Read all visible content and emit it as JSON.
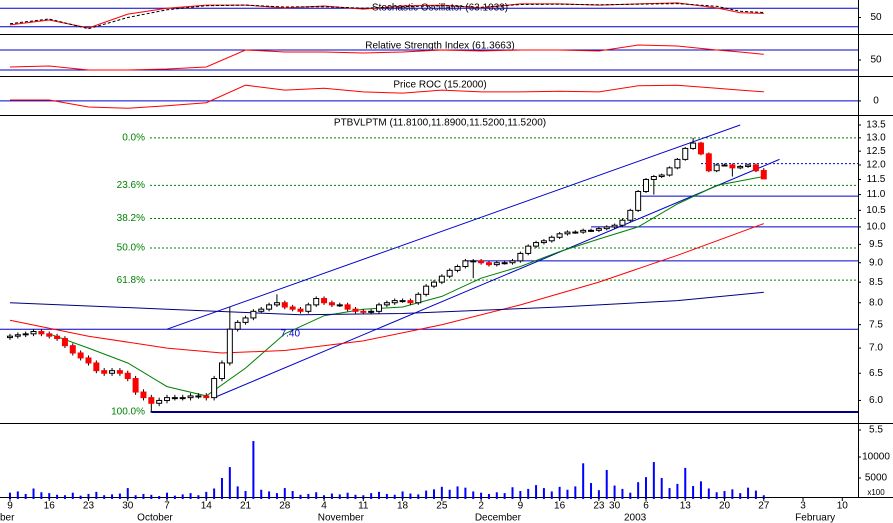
{
  "chart_data": [
    {
      "type": "line",
      "title": "Stochastic Oscillator (63.1033)",
      "xlim": [
        -1.27,
        108
      ],
      "ylim": [
        0,
        100
      ],
      "yticks": [
        50
      ],
      "levels": [
        80,
        20
      ],
      "level_color": "#0000cc",
      "series": [
        {
          "color": "#ff0000",
          "x": [
            0,
            5,
            10,
            15,
            20,
            25,
            30,
            35,
            40,
            45,
            50,
            55,
            60,
            65,
            70,
            75,
            80,
            85,
            90,
            93,
            96
          ],
          "values": [
            26,
            42,
            16,
            61,
            80,
            90,
            90,
            81,
            87,
            77,
            87,
            90,
            81,
            94,
            94,
            90,
            94,
            97,
            81,
            65,
            63.1
          ]
        },
        {
          "color": "#000000",
          "dash": true,
          "x": [
            0,
            5,
            10,
            15,
            20,
            25,
            30,
            35,
            40,
            45,
            50,
            55,
            60,
            65,
            70,
            75,
            80,
            85,
            90,
            93,
            96
          ],
          "values": [
            30,
            45,
            14,
            50,
            75,
            88,
            90,
            84,
            85,
            80,
            85,
            88,
            83,
            92,
            93,
            91,
            93,
            95,
            86,
            70,
            66
          ]
        }
      ]
    },
    {
      "type": "line",
      "title": "Relative Strength Index (61.3663)",
      "xlim": [
        -1.27,
        108
      ],
      "ylim": [
        18,
        98
      ],
      "yticks": [
        50
      ],
      "levels": [
        70,
        30
      ],
      "level_color": "#0000cc",
      "series": [
        {
          "color": "#ff0000",
          "x": [
            0,
            5,
            10,
            15,
            20,
            25,
            30,
            35,
            40,
            45,
            50,
            55,
            60,
            65,
            70,
            75,
            80,
            85,
            90,
            93,
            96
          ],
          "values": [
            36,
            38,
            30,
            30,
            32,
            36,
            70,
            66,
            66,
            64,
            66,
            70,
            68,
            70,
            70,
            68,
            80,
            78,
            70,
            66,
            61.3663
          ]
        }
      ]
    },
    {
      "type": "line",
      "title": "Price ROC (15.2000)",
      "xlim": [
        -1.27,
        108
      ],
      "ylim": [
        -20,
        38
      ],
      "yticks": [
        0
      ],
      "levels": [
        0
      ],
      "level_color": "#0000cc",
      "series": [
        {
          "color": "#ff0000",
          "x": [
            0,
            5,
            10,
            15,
            20,
            25,
            30,
            35,
            40,
            45,
            50,
            55,
            60,
            65,
            70,
            75,
            80,
            85,
            90,
            93,
            96
          ],
          "values": [
            1.5,
            1.5,
            -10,
            -12,
            -8,
            -3,
            26,
            18,
            21,
            15,
            13,
            18,
            15,
            15,
            16,
            15,
            25,
            26,
            21,
            18,
            15.2
          ]
        }
      ]
    },
    {
      "type": "candlestick",
      "title": "PTBVLPTM (11.8100,11.8900,11.5200,11.5200)",
      "log_scale": true,
      "xlim": [
        -1.27,
        108
      ],
      "ylim": [
        5.5,
        13.5
      ],
      "yticks": [
        13.5,
        {
          "value": 13,
          "label": "13.0"
        },
        12.5,
        {
          "value": 12,
          "label": "12.0"
        },
        11.5,
        {
          "value": 11,
          "label": "11.0"
        },
        10.5,
        {
          "value": 10,
          "label": "10.0"
        },
        9.5,
        {
          "value": 9,
          "label": "9.0"
        },
        8.5,
        {
          "value": 8,
          "label": "8.0"
        },
        7.5,
        {
          "value": 7,
          "label": "7.0"
        },
        6.5,
        {
          "value": 6,
          "label": "6.0"
        },
        5.5
      ],
      "up_color": "#ffffff",
      "down_color": "#ff0000",
      "candles": {
        "open": [
          7.22,
          7.25,
          7.28,
          7.3,
          7.35,
          7.3,
          7.25,
          7.2,
          7.05,
          6.9,
          6.8,
          6.7,
          6.55,
          6.5,
          6.55,
          6.5,
          6.4,
          6.15,
          6.05,
          5.95,
          6.0,
          6.05,
          6.05,
          6.05,
          6.08,
          6.08,
          6.05,
          6.4,
          6.7,
          7.4,
          7.55,
          7.65,
          7.8,
          7.85,
          7.95,
          8.0,
          7.9,
          7.85,
          7.8,
          7.95,
          8.1,
          8.0,
          7.95,
          7.95,
          7.85,
          7.8,
          7.78,
          7.8,
          7.95,
          8.0,
          8.05,
          8.05,
          8.0,
          8.2,
          8.4,
          8.5,
          8.65,
          8.8,
          8.9,
          9.05,
          9.05,
          9.0,
          8.95,
          9.0,
          9.0,
          9.05,
          9.25,
          9.45,
          9.55,
          9.6,
          9.7,
          9.8,
          9.85,
          9.85,
          9.9,
          9.9,
          9.95,
          10.0,
          10.05,
          10.2,
          10.5,
          11.1,
          11.5,
          11.6,
          11.65,
          11.9,
          12.2,
          12.6,
          12.8,
          12.4,
          11.8,
          12.0,
          12.0,
          11.9,
          11.95,
          12.0,
          11.81
        ],
        "high": [
          7.3,
          7.33,
          7.35,
          7.4,
          7.4,
          7.35,
          7.3,
          7.25,
          7.1,
          6.95,
          6.85,
          6.75,
          6.6,
          6.6,
          6.6,
          6.55,
          6.45,
          6.2,
          6.1,
          6.05,
          6.1,
          6.1,
          6.1,
          6.13,
          6.13,
          6.13,
          6.45,
          6.75,
          7.9,
          7.6,
          7.7,
          7.85,
          7.9,
          8.0,
          8.2,
          8.05,
          7.95,
          7.9,
          8.0,
          8.15,
          8.15,
          8.05,
          8.0,
          8.0,
          7.9,
          7.85,
          7.85,
          8.0,
          8.05,
          8.1,
          8.1,
          8.1,
          8.25,
          8.45,
          8.55,
          8.7,
          8.85,
          8.95,
          9.1,
          9.1,
          9.1,
          9.05,
          9.05,
          9.05,
          9.1,
          9.3,
          9.5,
          9.6,
          9.65,
          9.75,
          9.85,
          9.9,
          9.9,
          9.95,
          9.95,
          10.0,
          10.05,
          10.1,
          10.25,
          10.55,
          11.15,
          11.55,
          11.65,
          11.7,
          11.95,
          12.25,
          12.65,
          13.0,
          12.85,
          12.45,
          12.05,
          12.05,
          12.05,
          12.0,
          12.05,
          12.05,
          11.89
        ],
        "low": [
          7.17,
          7.2,
          7.23,
          7.25,
          7.25,
          7.2,
          7.15,
          7.0,
          6.85,
          6.75,
          6.65,
          6.5,
          6.45,
          6.45,
          6.45,
          6.35,
          6.1,
          6.0,
          5.8,
          5.9,
          5.95,
          6.0,
          6.0,
          6.0,
          6.03,
          6.0,
          6.0,
          6.35,
          6.65,
          7.35,
          7.5,
          7.6,
          7.75,
          7.8,
          7.9,
          7.85,
          7.8,
          7.75,
          7.75,
          7.9,
          7.95,
          7.9,
          7.9,
          7.8,
          7.75,
          7.73,
          7.73,
          7.75,
          7.9,
          7.95,
          8.0,
          7.95,
          7.95,
          8.15,
          8.35,
          8.45,
          8.6,
          8.75,
          8.85,
          8.6,
          8.95,
          8.9,
          8.9,
          8.95,
          8.95,
          9.0,
          9.2,
          9.4,
          9.5,
          9.55,
          9.65,
          9.75,
          9.8,
          9.8,
          9.85,
          9.85,
          9.9,
          9.95,
          10.0,
          10.15,
          10.45,
          11.05,
          11.0,
          11.55,
          11.6,
          11.85,
          12.15,
          12.55,
          12.35,
          11.75,
          11.75,
          11.95,
          11.6,
          11.85,
          11.9,
          11.75,
          11.52
        ],
        "close": [
          7.25,
          7.28,
          7.3,
          7.35,
          7.3,
          7.25,
          7.2,
          7.05,
          6.9,
          6.8,
          6.7,
          6.55,
          6.5,
          6.55,
          6.5,
          6.4,
          6.15,
          6.05,
          5.95,
          6.0,
          6.05,
          6.05,
          6.05,
          6.08,
          6.08,
          6.05,
          6.4,
          6.7,
          7.4,
          7.55,
          7.65,
          7.8,
          7.85,
          7.95,
          8.0,
          7.9,
          7.85,
          7.8,
          7.95,
          8.1,
          8.0,
          7.95,
          7.95,
          7.85,
          7.8,
          7.78,
          7.8,
          7.95,
          8.0,
          8.05,
          8.05,
          8.0,
          8.2,
          8.4,
          8.5,
          8.65,
          8.8,
          8.9,
          9.05,
          9.05,
          9.0,
          8.95,
          9.0,
          9.0,
          9.05,
          9.25,
          9.45,
          9.55,
          9.6,
          9.7,
          9.8,
          9.85,
          9.85,
          9.9,
          9.9,
          9.95,
          10.0,
          10.05,
          10.2,
          10.5,
          11.1,
          11.5,
          11.6,
          11.65,
          11.9,
          12.2,
          12.6,
          12.8,
          12.4,
          11.8,
          12.0,
          12.0,
          11.9,
          11.95,
          12.0,
          11.8,
          11.52
        ]
      },
      "moving_averages": [
        {
          "color": "#008000",
          "x": [
            5,
            10,
            15,
            20,
            25,
            30,
            35,
            40,
            45,
            50,
            55,
            60,
            65,
            70,
            75,
            80,
            85,
            90,
            96
          ],
          "values": [
            7.3,
            7.0,
            6.7,
            6.25,
            6.08,
            6.6,
            7.3,
            7.7,
            7.85,
            7.9,
            8.15,
            8.6,
            8.9,
            9.3,
            9.65,
            10.0,
            10.7,
            11.3,
            11.6
          ]
        },
        {
          "color": "#ff0000",
          "x": [
            0,
            10,
            20,
            27,
            35,
            45,
            55,
            65,
            75,
            85,
            96
          ],
          "values": [
            7.6,
            7.25,
            7.0,
            6.9,
            6.95,
            7.15,
            7.5,
            7.95,
            8.5,
            9.2,
            10.1
          ]
        },
        {
          "color": "#000080",
          "x": [
            0,
            20,
            37,
            50,
            70,
            85,
            96
          ],
          "values": [
            8.0,
            7.85,
            7.72,
            7.75,
            7.9,
            8.05,
            8.25
          ]
        }
      ],
      "fib_color": "#008000",
      "fib_levels": [
        {
          "value": 13.0,
          "label": "0.0%"
        },
        {
          "value": 11.3,
          "label": "23.6%"
        },
        {
          "value": 10.25,
          "label": "38.2%"
        },
        {
          "value": 9.4,
          "label": "50.0%"
        },
        {
          "value": 8.55,
          "label": "61.8%"
        },
        {
          "value": 5.8,
          "label": "100.0%"
        }
      ],
      "hlines": [
        {
          "value": 10.95,
          "from": 80,
          "color": "#0000cc"
        },
        {
          "value": 10.0,
          "from": 74,
          "color": "#0000cc"
        },
        {
          "value": 9.05,
          "from": 58,
          "color": "#0000cc"
        },
        {
          "value": 7.4,
          "color": "#0000cc"
        },
        {
          "value": 5.8,
          "from": 18,
          "color": "#000080"
        },
        {
          "value": 12.05,
          "from": 88,
          "color": "#0000cc",
          "dash": true
        }
      ],
      "trendlines": [
        {
          "color": "#0000cc",
          "x": [
            20,
            93
          ],
          "y": [
            7.4,
            13.5
          ]
        },
        {
          "color": "#0000cc",
          "x": [
            26,
            98
          ],
          "y": [
            6.05,
            12.2
          ]
        }
      ],
      "annotations": [
        {
          "text": "7.40",
          "x": 35.7,
          "y": 7.3,
          "color": "#0000cc"
        }
      ]
    },
    {
      "type": "bar",
      "xlim": [
        -1.27,
        108
      ],
      "ylim": [
        0,
        17000
      ],
      "color": "#0000ff",
      "yticks": [
        {
          "value": 10000,
          "label": "10000"
        },
        {
          "value": 5000,
          "label": "5000"
        }
      ],
      "unit_label": "x100",
      "values": [
        1500,
        1800,
        1200,
        2500,
        1600,
        1400,
        1000,
        900,
        1500,
        800,
        1200,
        1700,
        900,
        1100,
        1300,
        2600,
        900,
        1200,
        1000,
        700,
        1500,
        800,
        1100,
        1400,
        900,
        1700,
        2500,
        5000,
        7600,
        3000,
        1900,
        13800,
        2200,
        1800,
        1400,
        2600,
        1900,
        1000,
        1200,
        1600,
        900,
        1300,
        1100,
        1500,
        1000,
        900,
        1400,
        1700,
        1200,
        1000,
        1800,
        1300,
        1100,
        2000,
        2300,
        2900,
        2200,
        3000,
        2700,
        1800,
        1500,
        1200,
        1600,
        1400,
        2800,
        1900,
        2400,
        3300,
        2600,
        1800,
        2900,
        2200,
        3000,
        8500,
        3800,
        2100,
        6900,
        3200,
        2400,
        1500,
        4000,
        5200,
        8800,
        5000,
        2600,
        3600,
        7400,
        3100,
        4200,
        2500,
        1600,
        1900,
        2300,
        1400,
        2700,
        2000,
        900
      ],
      "xticks": [
        {
          "value": 0,
          "label": "9"
        },
        {
          "value": 5,
          "label": "16"
        },
        {
          "value": 10,
          "label": "23"
        },
        {
          "value": 15,
          "label": "30"
        },
        {
          "value": 20,
          "label": "7"
        },
        {
          "value": 25,
          "label": "14"
        },
        {
          "value": 30,
          "label": "21"
        },
        {
          "value": 35,
          "label": "28"
        },
        {
          "value": 40,
          "label": "4"
        },
        {
          "value": 45,
          "label": "11"
        },
        {
          "value": 50,
          "label": "18"
        },
        {
          "value": 55,
          "label": "25"
        },
        {
          "value": 60,
          "label": "2"
        },
        {
          "value": 65,
          "label": "9"
        },
        {
          "value": 70,
          "label": "16"
        },
        {
          "value": 75,
          "label": "23"
        },
        {
          "value": 77,
          "label": "30"
        },
        {
          "value": 81,
          "label": "6"
        },
        {
          "value": 86,
          "label": "13"
        },
        {
          "value": 91,
          "label": "20"
        },
        {
          "value": 96,
          "label": "27"
        },
        {
          "value": 101,
          "label": "3"
        },
        {
          "value": 106,
          "label": "10"
        }
      ],
      "months": [
        {
          "value": -1.27,
          "label": "ber"
        },
        {
          "value": 16.2,
          "label": "October"
        },
        {
          "value": 39.2,
          "label": "November"
        },
        {
          "value": 59.2,
          "label": "December"
        },
        {
          "value": 78.2,
          "label": "2003"
        },
        {
          "value": 100,
          "label": "February"
        }
      ]
    }
  ]
}
